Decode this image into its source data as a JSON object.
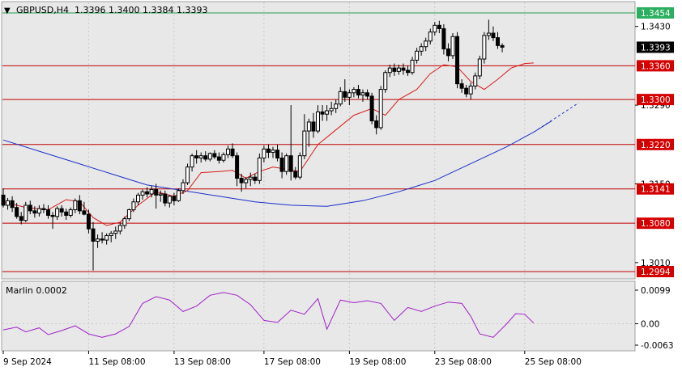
{
  "header": {
    "symbol_timeframe": "GBPUSD,H4",
    "ohlc": "1.3396 1.3400 1.3384 1.3393"
  },
  "oscillator": {
    "label": "Marlin 0.0002",
    "ticks": [
      "0.0099",
      "0.00",
      "-0.0063"
    ]
  },
  "colors": {
    "candle_up_body": "#ffffff",
    "candle_down_body": "#000000",
    "fast_ma": "#d81b1b",
    "slow_ma": "#1a2fc8",
    "level_line": "#c00000",
    "top_level_line": "#20a050",
    "oscillator_line": "#a020c8",
    "price_label_bg": "#d40000",
    "top_label_bg": "#2ab060",
    "last_price_bg": "#000000"
  },
  "chart_data": {
    "type": "candlestick",
    "price_ticks": [
      "1.3430",
      "1.3290",
      "1.3150",
      "1.3010"
    ],
    "level_labels": [
      "1.3454",
      "1.3393",
      "1.3360",
      "1.3300",
      "1.3220",
      "1.3141",
      "1.3080",
      "1.2994"
    ],
    "levels": [
      {
        "price": 1.3454,
        "kind": "top"
      },
      {
        "price": 1.336,
        "kind": "level"
      },
      {
        "price": 1.33,
        "kind": "level"
      },
      {
        "price": 1.322,
        "kind": "level"
      },
      {
        "price": 1.3141,
        "kind": "level"
      },
      {
        "price": 1.308,
        "kind": "level"
      },
      {
        "price": 1.2994,
        "kind": "level"
      }
    ],
    "last_price": 1.3393,
    "x_labels": [
      "9 Sep 2024",
      "11 Sep 08:00",
      "13 Sep 08:00",
      "17 Sep 08:00",
      "19 Sep 08:00",
      "23 Sep 08:00",
      "25 Sep 08:00"
    ],
    "x_label_bars": [
      0,
      19,
      38,
      58,
      77,
      96,
      116
    ],
    "candles": [
      [
        1.313,
        1.3142,
        1.3108,
        1.3112
      ],
      [
        1.3112,
        1.3125,
        1.3104,
        1.312
      ],
      [
        1.312,
        1.3128,
        1.31,
        1.3108
      ],
      [
        1.3108,
        1.3116,
        1.3088,
        1.3092
      ],
      [
        1.3092,
        1.31,
        1.3078,
        1.3085
      ],
      [
        1.3085,
        1.3118,
        1.3082,
        1.3112
      ],
      [
        1.3112,
        1.312,
        1.3096,
        1.3102
      ],
      [
        1.3102,
        1.311,
        1.309,
        1.3098
      ],
      [
        1.3098,
        1.3112,
        1.3092,
        1.3106
      ],
      [
        1.3106,
        1.3114,
        1.3098,
        1.3104
      ],
      [
        1.3104,
        1.3112,
        1.3088,
        1.3094
      ],
      [
        1.3094,
        1.31,
        1.307,
        1.3092
      ],
      [
        1.3092,
        1.311,
        1.3086,
        1.3106
      ],
      [
        1.3106,
        1.3112,
        1.3092,
        1.31
      ],
      [
        1.31,
        1.3106,
        1.3086,
        1.3094
      ],
      [
        1.3094,
        1.3108,
        1.309,
        1.3104
      ],
      [
        1.3104,
        1.3124,
        1.3098,
        1.312
      ],
      [
        1.312,
        1.313,
        1.3096,
        1.3102
      ],
      [
        1.3102,
        1.3118,
        1.3094,
        1.3096
      ],
      [
        1.3096,
        1.3104,
        1.3062,
        1.307
      ],
      [
        1.307,
        1.3082,
        1.2996,
        1.3048
      ],
      [
        1.3048,
        1.306,
        1.3036,
        1.3052
      ],
      [
        1.3052,
        1.3064,
        1.3044,
        1.305
      ],
      [
        1.305,
        1.3062,
        1.3042,
        1.3058
      ],
      [
        1.3058,
        1.3066,
        1.3046,
        1.3062
      ],
      [
        1.3062,
        1.3074,
        1.3052,
        1.3066
      ],
      [
        1.3066,
        1.3082,
        1.306,
        1.3076
      ],
      [
        1.3076,
        1.3092,
        1.307,
        1.3088
      ],
      [
        1.3088,
        1.3106,
        1.3084,
        1.3104
      ],
      [
        1.3104,
        1.3124,
        1.31,
        1.3118
      ],
      [
        1.3118,
        1.3134,
        1.3112,
        1.313
      ],
      [
        1.313,
        1.314,
        1.3122,
        1.3136
      ],
      [
        1.3136,
        1.3144,
        1.3126,
        1.3132
      ],
      [
        1.3132,
        1.3146,
        1.3126,
        1.314
      ],
      [
        1.314,
        1.315,
        1.3106,
        1.313
      ],
      [
        1.313,
        1.3138,
        1.3118,
        1.3132
      ],
      [
        1.3132,
        1.3138,
        1.311,
        1.3116
      ],
      [
        1.3116,
        1.313,
        1.3108,
        1.3128
      ],
      [
        1.3128,
        1.3134,
        1.3112,
        1.312
      ],
      [
        1.312,
        1.3142,
        1.3118,
        1.3138
      ],
      [
        1.3138,
        1.3158,
        1.3132,
        1.3152
      ],
      [
        1.3152,
        1.3186,
        1.3148,
        1.318
      ],
      [
        1.318,
        1.3204,
        1.3172,
        1.32
      ],
      [
        1.32,
        1.321,
        1.3186,
        1.3196
      ],
      [
        1.3196,
        1.3206,
        1.3188,
        1.32
      ],
      [
        1.32,
        1.3208,
        1.319,
        1.3194
      ],
      [
        1.3194,
        1.3206,
        1.319,
        1.3204
      ],
      [
        1.3204,
        1.321,
        1.3194,
        1.3198
      ],
      [
        1.3198,
        1.3206,
        1.3186,
        1.3192
      ],
      [
        1.3192,
        1.3206,
        1.3188,
        1.3202
      ],
      [
        1.3202,
        1.3218,
        1.3196,
        1.3212
      ],
      [
        1.3212,
        1.3222,
        1.3196,
        1.32
      ],
      [
        1.32,
        1.3206,
        1.3146,
        1.316
      ],
      [
        1.316,
        1.3168,
        1.3136,
        1.3152
      ],
      [
        1.3152,
        1.3162,
        1.3142,
        1.3158
      ],
      [
        1.3158,
        1.317,
        1.3146,
        1.3162
      ],
      [
        1.3162,
        1.3168,
        1.315,
        1.3156
      ],
      [
        1.3156,
        1.3204,
        1.315,
        1.3196
      ],
      [
        1.3196,
        1.3218,
        1.3188,
        1.3212
      ],
      [
        1.3212,
        1.322,
        1.3196,
        1.3206
      ],
      [
        1.3206,
        1.3216,
        1.3196,
        1.321
      ],
      [
        1.321,
        1.322,
        1.319,
        1.3196
      ],
      [
        1.3196,
        1.3206,
        1.316,
        1.3172
      ],
      [
        1.3172,
        1.3204,
        1.3166,
        1.32
      ],
      [
        1.32,
        1.329,
        1.3156,
        1.3172
      ],
      [
        1.3172,
        1.318,
        1.3158,
        1.3162
      ],
      [
        1.3162,
        1.3206,
        1.3158,
        1.32
      ],
      [
        1.32,
        1.3274,
        1.3194,
        1.3244
      ],
      [
        1.3244,
        1.3266,
        1.3216,
        1.326
      ],
      [
        1.326,
        1.3276,
        1.3232,
        1.3244
      ],
      [
        1.3244,
        1.329,
        1.324,
        1.3278
      ],
      [
        1.3278,
        1.329,
        1.3262,
        1.3274
      ],
      [
        1.3274,
        1.329,
        1.3262,
        1.328
      ],
      [
        1.328,
        1.3296,
        1.3272,
        1.3284
      ],
      [
        1.3284,
        1.33,
        1.3276,
        1.3292
      ],
      [
        1.3292,
        1.3322,
        1.3288,
        1.3314
      ],
      [
        1.3314,
        1.3336,
        1.3296,
        1.3304
      ],
      [
        1.3304,
        1.3318,
        1.329,
        1.3312
      ],
      [
        1.3312,
        1.3322,
        1.3304,
        1.3318
      ],
      [
        1.3318,
        1.3326,
        1.3302,
        1.3308
      ],
      [
        1.3308,
        1.3318,
        1.3296,
        1.3312
      ],
      [
        1.3312,
        1.3318,
        1.33,
        1.3306
      ],
      [
        1.3306,
        1.3312,
        1.3256,
        1.3262
      ],
      [
        1.3262,
        1.3272,
        1.3238,
        1.325
      ],
      [
        1.325,
        1.3324,
        1.3246,
        1.3318
      ],
      [
        1.3318,
        1.3352,
        1.3312,
        1.3348
      ],
      [
        1.3348,
        1.3362,
        1.334,
        1.3356
      ],
      [
        1.3356,
        1.3364,
        1.3342,
        1.335
      ],
      [
        1.335,
        1.3362,
        1.3344,
        1.3356
      ],
      [
        1.3356,
        1.3364,
        1.3344,
        1.3352
      ],
      [
        1.3352,
        1.336,
        1.3342,
        1.3348
      ],
      [
        1.3348,
        1.3376,
        1.3344,
        1.337
      ],
      [
        1.337,
        1.3392,
        1.3364,
        1.3386
      ],
      [
        1.3386,
        1.34,
        1.3378,
        1.3394
      ],
      [
        1.3394,
        1.341,
        1.3386,
        1.3404
      ],
      [
        1.3404,
        1.3426,
        1.3398,
        1.342
      ],
      [
        1.342,
        1.3438,
        1.3414,
        1.3432
      ],
      [
        1.3432,
        1.344,
        1.3418,
        1.3426
      ],
      [
        1.3426,
        1.3434,
        1.338,
        1.339
      ],
      [
        1.339,
        1.34,
        1.3368,
        1.3378
      ],
      [
        1.3378,
        1.3418,
        1.3372,
        1.3412
      ],
      [
        1.3412,
        1.342,
        1.332,
        1.3328
      ],
      [
        1.3328,
        1.3336,
        1.3312,
        1.332
      ],
      [
        1.332,
        1.3326,
        1.3304,
        1.331
      ],
      [
        1.331,
        1.333,
        1.33,
        1.3324
      ],
      [
        1.3324,
        1.3348,
        1.3318,
        1.3342
      ],
      [
        1.3342,
        1.3378,
        1.3336,
        1.3372
      ],
      [
        1.3372,
        1.342,
        1.3364,
        1.3414
      ],
      [
        1.3414,
        1.3442,
        1.3406,
        1.3418
      ],
      [
        1.3418,
        1.343,
        1.3404,
        1.341
      ],
      [
        1.341,
        1.342,
        1.339,
        1.3396
      ],
      [
        1.3396,
        1.34,
        1.3384,
        1.3393
      ]
    ],
    "fast_ma": [
      [
        0,
        1.3118
      ],
      [
        5,
        1.3108
      ],
      [
        10,
        1.3104
      ],
      [
        14,
        1.3122
      ],
      [
        17,
        1.3118
      ],
      [
        20,
        1.309
      ],
      [
        23,
        1.3076
      ],
      [
        26,
        1.3082
      ],
      [
        30,
        1.3112
      ],
      [
        34,
        1.3136
      ],
      [
        38,
        1.3128
      ],
      [
        41,
        1.3138
      ],
      [
        44,
        1.317
      ],
      [
        48,
        1.3172
      ],
      [
        51,
        1.3174
      ],
      [
        54,
        1.316
      ],
      [
        57,
        1.3172
      ],
      [
        60,
        1.318
      ],
      [
        63,
        1.3176
      ],
      [
        66,
        1.3172
      ],
      [
        70,
        1.322
      ],
      [
        74,
        1.3246
      ],
      [
        78,
        1.3272
      ],
      [
        82,
        1.3284
      ],
      [
        85,
        1.3272
      ],
      [
        88,
        1.33
      ],
      [
        92,
        1.3318
      ],
      [
        95,
        1.3346
      ],
      [
        98,
        1.3362
      ],
      [
        101,
        1.3358
      ],
      [
        104,
        1.3332
      ],
      [
        107,
        1.3318
      ],
      [
        110,
        1.3336
      ],
      [
        113,
        1.3356
      ],
      [
        116,
        1.3364
      ],
      [
        118,
        1.3365
      ]
    ],
    "slow_ma": [
      [
        0,
        1.3228
      ],
      [
        8,
        1.3208
      ],
      [
        16,
        1.3188
      ],
      [
        24,
        1.3168
      ],
      [
        32,
        1.3148
      ],
      [
        40,
        1.3138
      ],
      [
        48,
        1.3128
      ],
      [
        56,
        1.3118
      ],
      [
        64,
        1.3112
      ],
      [
        72,
        1.311
      ],
      [
        80,
        1.312
      ],
      [
        88,
        1.3136
      ],
      [
        96,
        1.3156
      ],
      [
        104,
        1.3186
      ],
      [
        112,
        1.3216
      ],
      [
        118,
        1.3242
      ],
      [
        122,
        1.3262
      ]
    ],
    "slow_ma_projection": [
      [
        118,
        1.3242
      ],
      [
        128,
        1.3294
      ]
    ],
    "oscillator": [
      [
        0,
        -0.0018
      ],
      [
        3,
        -0.001
      ],
      [
        5,
        -0.0024
      ],
      [
        8,
        -0.0012
      ],
      [
        10,
        -0.0032
      ],
      [
        13,
        -0.002
      ],
      [
        16,
        -0.0006
      ],
      [
        19,
        -0.003
      ],
      [
        22,
        -0.004
      ],
      [
        25,
        -0.003
      ],
      [
        28,
        -0.0008
      ],
      [
        31,
        0.006
      ],
      [
        34,
        0.008
      ],
      [
        37,
        0.007
      ],
      [
        40,
        0.0036
      ],
      [
        43,
        0.0052
      ],
      [
        46,
        0.0084
      ],
      [
        49,
        0.0092
      ],
      [
        52,
        0.0084
      ],
      [
        55,
        0.0056
      ],
      [
        58,
        0.001
      ],
      [
        61,
        0.0004
      ],
      [
        64,
        0.004
      ],
      [
        67,
        0.0028
      ],
      [
        70,
        0.0074
      ],
      [
        72,
        -0.0016
      ],
      [
        75,
        0.007
      ],
      [
        78,
        0.0062
      ],
      [
        81,
        0.0068
      ],
      [
        84,
        0.006
      ],
      [
        87,
        0.001
      ],
      [
        90,
        0.0048
      ],
      [
        93,
        0.0036
      ],
      [
        96,
        0.0052
      ],
      [
        99,
        0.0064
      ],
      [
        102,
        0.006
      ],
      [
        104,
        0.0022
      ],
      [
        106,
        -0.003
      ],
      [
        109,
        -0.004
      ],
      [
        112,
        0.0
      ],
      [
        114,
        0.003
      ],
      [
        116,
        0.0028
      ],
      [
        118,
        0.0002
      ]
    ],
    "oscillator_range": [
      -0.0063,
      0.0099
    ]
  }
}
